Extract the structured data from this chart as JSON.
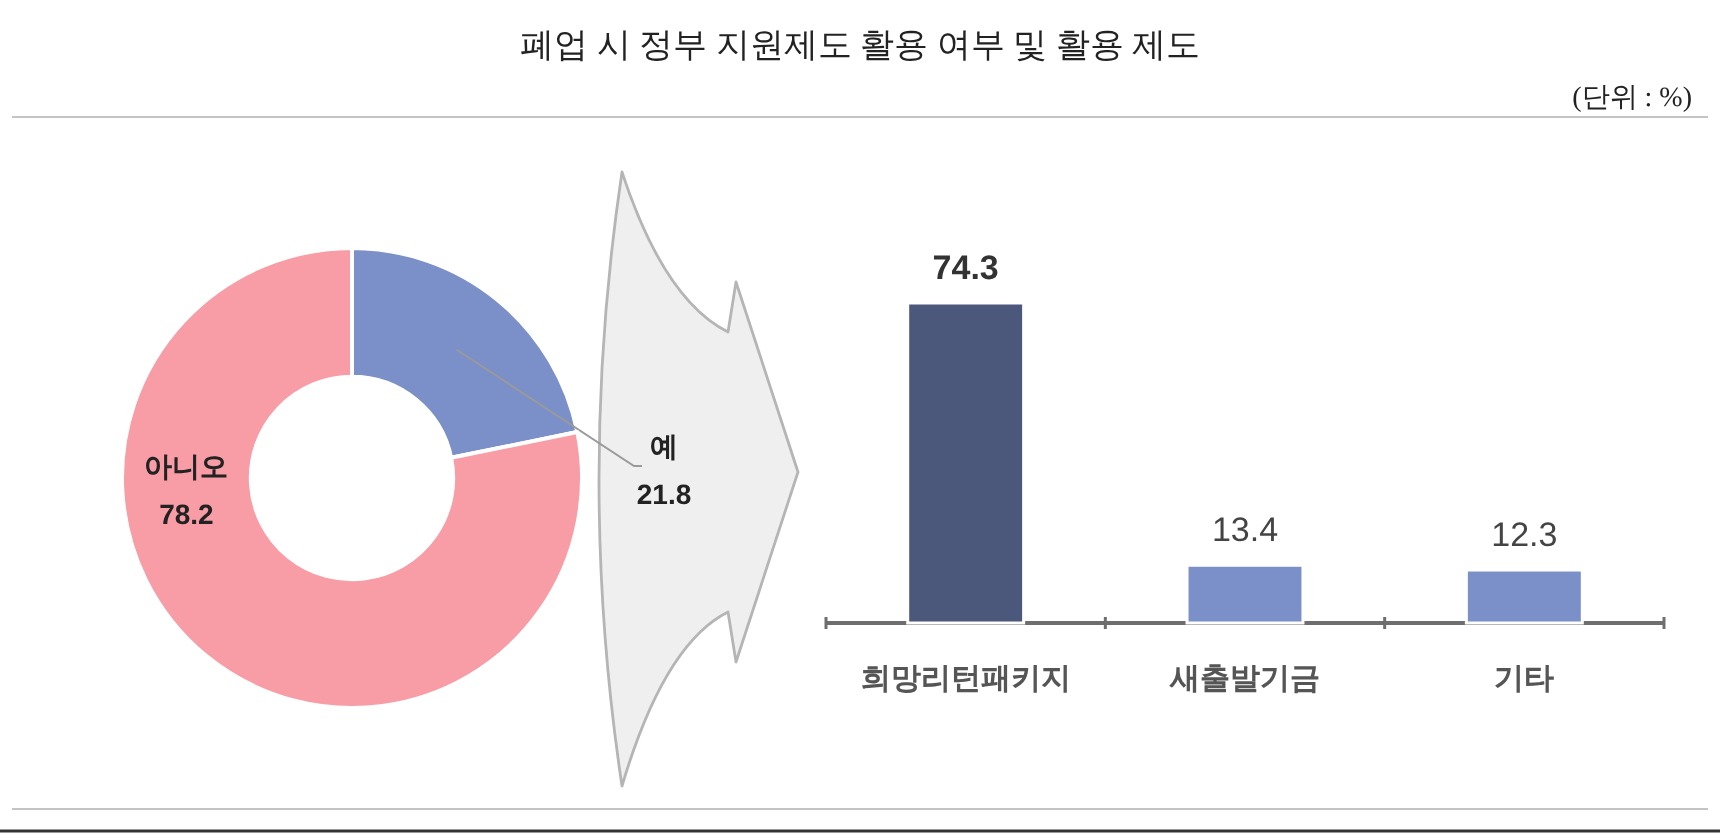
{
  "chart_data": [
    {
      "type": "donut",
      "title": "폐업 시 정부 지원제도 활용 여부 및 활용 제도",
      "annotations": [
        "(단위 : %)"
      ],
      "categories": [
        "예",
        "아니오"
      ],
      "values": [
        21.8,
        78.2
      ],
      "colors": [
        "#7b8fc9",
        "#f89ca6"
      ],
      "data_labels": true
    },
    {
      "type": "bar",
      "categories": [
        "희망리턴패키지",
        "새출발기금",
        "기타"
      ],
      "values": [
        74.3,
        13.4,
        12.3
      ],
      "colors": [
        "#4b577b",
        "#7b8fc9",
        "#7b8fc9"
      ],
      "data_labels": true
    }
  ]
}
